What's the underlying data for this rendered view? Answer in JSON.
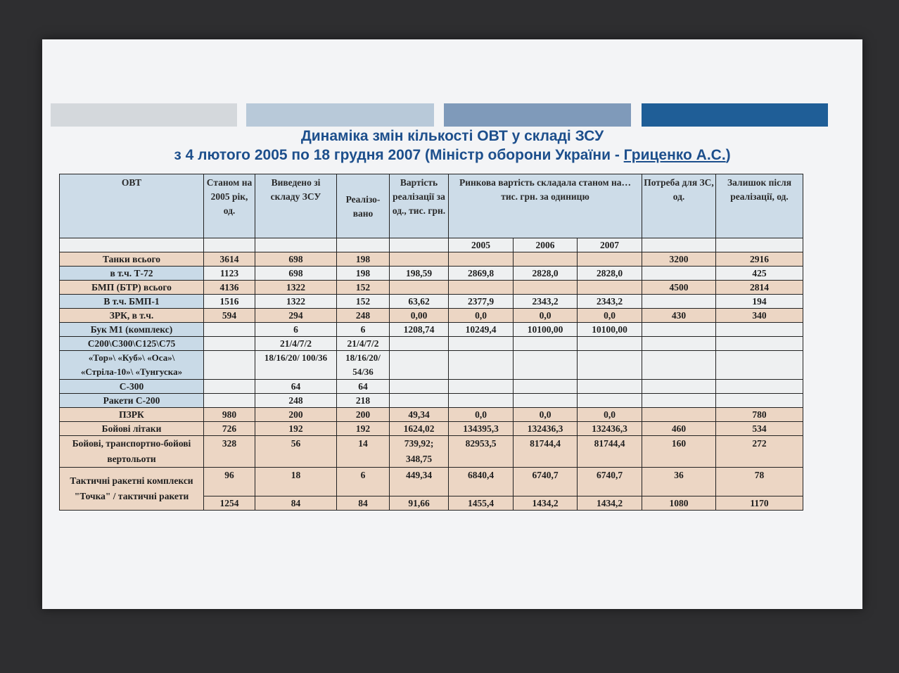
{
  "colors": {
    "bar1": "#d4d8dc",
    "bar2": "#b8c9d9",
    "bar3": "#7f9aba",
    "bar4": "#1f5e97",
    "title": "#1d4f8c",
    "beige": "#ecd6c4",
    "blue": "#c9dae7"
  },
  "title": {
    "line1": "Динаміка змін кількості ОВТ у складі ЗСУ",
    "line2_prefix": "з 4 лютого 2005 по 18 грудня 2007 (Міністр оборони України - ",
    "line2_name": "Гриценко А.С.",
    "line2_suffix": ")"
  },
  "table": {
    "headers": {
      "ovt": "ОВТ",
      "stock2005": "Станом на 2005 рік, од.",
      "withdrawn": "Виведено зі складу ЗСУ",
      "sold": "Реалізо- вано",
      "cost": "Вартість реалізації за од., тис. грн.",
      "market": "Ринкова вартість складала станом на… тис. грн. за одиницю",
      "need": "Потреба для ЗС, од.",
      "remaining": "Залишок після реалізації, од."
    },
    "years": [
      "2005",
      "2006",
      "2007"
    ],
    "rows": [
      {
        "style": "beige",
        "cells": [
          "Танки всього",
          "3614",
          "698",
          "198",
          "",
          "",
          "",
          "",
          "3200",
          "2916"
        ]
      },
      {
        "style": "plain",
        "cells": [
          "в т.ч. Т-72",
          "1123",
          "698",
          "198",
          "198,59",
          "2869,8",
          "2828,0",
          "2828,0",
          "",
          "425"
        ]
      },
      {
        "style": "beige",
        "cells": [
          "БМП (БТР) всього",
          "4136",
          "1322",
          "152",
          "",
          "",
          "",
          "",
          "4500",
          "2814"
        ]
      },
      {
        "style": "plain",
        "cells": [
          "В т.ч. БМП-1",
          "1516",
          "1322",
          "152",
          "63,62",
          "2377,9",
          "2343,2",
          "2343,2",
          "",
          "194"
        ]
      },
      {
        "style": "beige",
        "cells": [
          "ЗРК, в т.ч.",
          "594",
          "294",
          "248",
          "0,00",
          "0,0",
          "0,0",
          "0,0",
          "430",
          "340"
        ]
      },
      {
        "style": "plain",
        "cells": [
          "Бук М1 (комплекс)",
          "",
          "6",
          "6",
          "1208,74",
          "10249,4",
          "10100,00",
          "10100,00",
          "",
          ""
        ]
      },
      {
        "style": "plain",
        "cells": [
          "С200\\С300\\С125\\С75",
          "",
          "21/4/7/2",
          "21/4/7/2",
          "",
          "",
          "",
          "",
          "",
          ""
        ]
      },
      {
        "style": "plain",
        "cells": [
          "«Тор»\\ «Куб»\\ «Оса»\\ «Стріла-10»\\ «Тунгуска»",
          "",
          "18/16/20/ 100/36",
          "18/16/20/ 54/36",
          "",
          "",
          "",
          "",
          "",
          ""
        ]
      },
      {
        "style": "plain",
        "cells": [
          "С-300",
          "",
          "64",
          "64",
          "",
          "",
          "",
          "",
          "",
          ""
        ]
      },
      {
        "style": "plain",
        "cells": [
          "Ракети С-200",
          "",
          "248",
          "218",
          "",
          "",
          "",
          "",
          "",
          ""
        ]
      },
      {
        "style": "beige",
        "cells": [
          "ПЗРК",
          "980",
          "200",
          "200",
          "49,34",
          "0,0",
          "0,0",
          "0,0",
          "",
          "780"
        ]
      },
      {
        "style": "beige",
        "cells": [
          "Бойові літаки",
          "726",
          "192",
          "192",
          "1624,02",
          "134395,3",
          "132436,3",
          "132436,3",
          "460",
          "534"
        ]
      },
      {
        "style": "beige",
        "tall": true,
        "cells": [
          "Бойові, транспортно-бойові вертольоти",
          "328",
          "56",
          "14",
          "739,92; 348,75",
          "82953,5",
          "81744,4",
          "81744,4",
          "160",
          "272"
        ]
      },
      {
        "style": "beige",
        "tall": true,
        "rowspan_name": true,
        "cells": [
          "Тактичні ракетні комплекси \"Точка\" / тактичні ракети",
          "96",
          "18",
          "6",
          "449,34",
          "6840,4",
          "6740,7",
          "6740,7",
          "36",
          "78"
        ]
      },
      {
        "style": "beige",
        "no_name": true,
        "cells": [
          "",
          "1254",
          "84",
          "84",
          "91,66",
          "1455,4",
          "1434,2",
          "1434,2",
          "1080",
          "1170"
        ]
      }
    ]
  }
}
